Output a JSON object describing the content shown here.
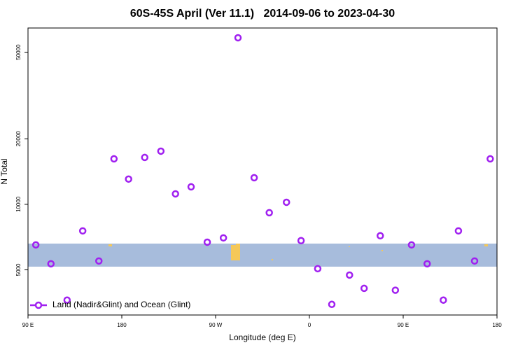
{
  "chart_data": {
    "type": "scatter",
    "title": "60S-45S April (Ver 11.1)   2014-09-06 to 2023-04-30",
    "xlabel": "Longitude (deg E)",
    "ylabel": "N Total",
    "x": [
      97.5,
      112,
      127.5,
      142.5,
      158,
      172.5,
      186.5,
      202,
      217.5,
      231.5,
      246.5,
      262,
      277.5,
      291.5,
      307,
      321.5,
      338,
      352,
      368,
      381.5,
      398.5,
      412.5,
      428,
      442.5,
      458,
      473,
      488.5,
      503,
      518.5,
      533.5
    ],
    "series": [
      {
        "name": "Land (Nadir&Glint) and Ocean (Glint)",
        "color": "#a020f0",
        "values": [
          6510,
          5330,
          3630,
          7550,
          5490,
          16180,
          13060,
          16420,
          17550,
          11170,
          12030,
          6700,
          7010,
          58250,
          13250,
          9150,
          10220,
          6810,
          5060,
          3470,
          4730,
          4110,
          7170,
          4030,
          6510,
          5330,
          3630,
          7550,
          5490,
          16180
        ]
      }
    ],
    "xlim": [
      90,
      540
    ],
    "xticks": [
      {
        "value": 90,
        "label": "90 E"
      },
      180,
      {
        "value": 270,
        "label": "90 W"
      },
      {
        "value": 360,
        "label": "0"
      },
      {
        "value": 450,
        "label": "90 E"
      },
      {
        "value": 540,
        "label": "180"
      }
    ],
    "ylim": [
      3100,
      64600
    ],
    "log_y": true,
    "yticks": [
      5000,
      10000,
      20000,
      50000
    ],
    "band": {
      "range": [
        5170,
        6600
      ],
      "color": "#a7bcdc"
    },
    "legend": "bottom-left"
  }
}
